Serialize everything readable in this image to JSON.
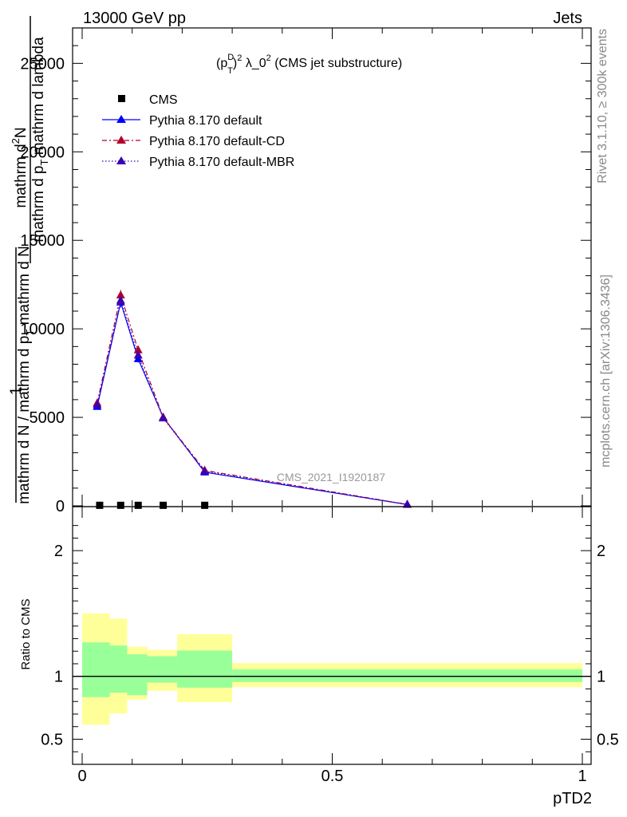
{
  "header": {
    "left": "13000 GeV pp",
    "right": "Jets"
  },
  "side_labels": {
    "rivet": "Rivet 3.1.10, ≥ 300k events",
    "mcplots": "mcplots.cern.ch [arXiv:1306.3436]"
  },
  "colors": {
    "cms": "#000000",
    "default": "#0000ff",
    "default_cd": "#b2002a",
    "default_mbr": "#3b00b2",
    "band_inner": "#99ff99",
    "band_outer": "#ffff99"
  },
  "chart_data": [
    {
      "type": "line",
      "panel": "main",
      "title": "(p_T^D)^2 λ_0^2 (CMS jet substructure)",
      "title_parts": {
        "base": "(p",
        "sup1": "D",
        "sub1": "T",
        "close": ")",
        "sup2": "2",
        "mid": " λ_0",
        "sup3": "2",
        "tail": " (CMS jet substructure)"
      },
      "ylabel_lines": [
        "1",
        "mathrm d N / mathrm d p_T mathrm d N",
        "mathrm d^2 N",
        "mathrm d p_T mathrm d lambda"
      ],
      "ylabel_parts": {
        "top_num": "mathrm d",
        "top_num_sup": "2",
        "top_num_end": "N",
        "top_den": "mathrm d p",
        "top_den_sub": "T",
        "top_den_end": " mathrm d lambda",
        "bot_num": "1",
        "bot_den": "mathrm d N / mathrm d p",
        "bot_den_sub": "T",
        "bot_den_end": " mathrm d N"
      },
      "xlim": [
        0,
        1
      ],
      "ylim": [
        0,
        27000
      ],
      "yticks": [
        0,
        5000,
        10000,
        15000,
        20000,
        25000
      ],
      "ytick_labels": [
        "0",
        "5000",
        "10000",
        "15000",
        "20000",
        "25000"
      ],
      "watermark": "CMS_2021_I1920187",
      "legend_position": "top-left",
      "series": [
        {
          "name": "CMS",
          "marker": "square",
          "x": [
            0.035,
            0.077,
            0.112,
            0.162,
            0.245
          ],
          "y": [
            30,
            30,
            30,
            30,
            30
          ]
        },
        {
          "name": "Pythia 8.170 default",
          "marker": "triangle",
          "style": "solid",
          "x": [
            0.03,
            0.077,
            0.112,
            0.162,
            0.245,
            0.65
          ],
          "y": [
            5600,
            11500,
            8300,
            5000,
            1900,
            70
          ],
          "err": [
            150,
            300,
            200,
            120,
            80,
            10
          ]
        },
        {
          "name": "Pythia 8.170 default-CD",
          "marker": "triangle",
          "style": "dashdot",
          "x": [
            0.03,
            0.077,
            0.112,
            0.162,
            0.245,
            0.65
          ],
          "y": [
            5800,
            11900,
            8800,
            5000,
            2000,
            80
          ],
          "err": [
            150,
            300,
            200,
            120,
            80,
            10
          ]
        },
        {
          "name": "Pythia 8.170 default-MBR",
          "marker": "triangle",
          "style": "dotted",
          "x": [
            0.03,
            0.077,
            0.112,
            0.162,
            0.245,
            0.65
          ],
          "y": [
            5700,
            11600,
            8500,
            4950,
            1950,
            75
          ],
          "err": [
            150,
            300,
            200,
            120,
            80,
            10
          ]
        }
      ]
    },
    {
      "type": "area",
      "panel": "ratio",
      "ylabel": "Ratio to CMS",
      "xlabel": "pTD2",
      "xlim": [
        0,
        1
      ],
      "ylim": [
        0.3,
        2.35
      ],
      "yticks": [
        0.5,
        1,
        2
      ],
      "ytick_labels": [
        "0.5",
        "1",
        "2"
      ],
      "xticks": [
        0,
        0.5,
        1
      ],
      "xtick_labels": [
        "0",
        "0.5",
        "1"
      ],
      "reference": 1,
      "bins": [
        {
          "lo": 0.0,
          "hi": 0.055,
          "inner": [
            0.835,
            1.27
          ],
          "outer": [
            0.615,
            1.5
          ]
        },
        {
          "lo": 0.055,
          "hi": 0.09,
          "inner": [
            0.87,
            1.245
          ],
          "outer": [
            0.705,
            1.46
          ]
        },
        {
          "lo": 0.09,
          "hi": 0.13,
          "inner": [
            0.85,
            1.175
          ],
          "outer": [
            0.815,
            1.235
          ]
        },
        {
          "lo": 0.13,
          "hi": 0.19,
          "inner": [
            0.95,
            1.16
          ],
          "outer": [
            0.885,
            1.21
          ]
        },
        {
          "lo": 0.19,
          "hi": 0.3,
          "inner": [
            0.91,
            1.205
          ],
          "outer": [
            0.795,
            1.335
          ]
        },
        {
          "lo": 0.3,
          "hi": 1.0,
          "inner": [
            0.955,
            1.055
          ],
          "outer": [
            0.915,
            1.105
          ]
        }
      ]
    }
  ]
}
